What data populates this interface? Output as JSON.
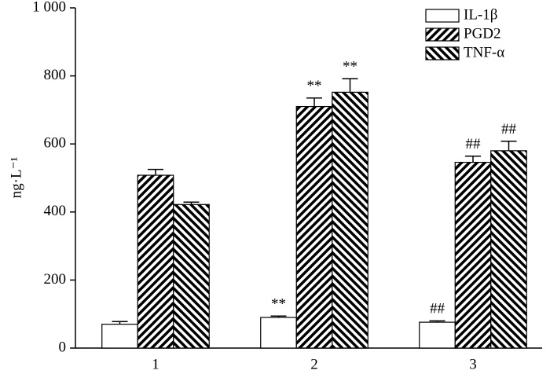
{
  "chart_data": {
    "type": "bar",
    "ylabel": "ng·L⁻¹",
    "categories": [
      "1",
      "2",
      "3"
    ],
    "series": [
      {
        "name": "IL-1β",
        "color": "#ffffff",
        "pattern": "none",
        "values": [
          70,
          90,
          76
        ],
        "errors": [
          8,
          4,
          4
        ],
        "annotations": [
          null,
          "**",
          "##"
        ]
      },
      {
        "name": "PGD2",
        "color": "#000000",
        "pattern": "forward",
        "values": [
          508,
          710,
          546
        ],
        "errors": [
          17,
          25,
          18
        ],
        "annotations": [
          null,
          "**",
          "##"
        ]
      },
      {
        "name": "TNF-α",
        "color": "#000000",
        "pattern": "backward",
        "values": [
          422,
          752,
          580
        ],
        "errors": [
          7,
          40,
          28
        ],
        "annotations": [
          null,
          "**",
          "##"
        ]
      }
    ],
    "ylim": [
      0,
      1000
    ],
    "yticks": [
      0,
      200,
      400,
      600,
      800,
      {
        "value": 1000,
        "label": "1 000"
      }
    ]
  }
}
